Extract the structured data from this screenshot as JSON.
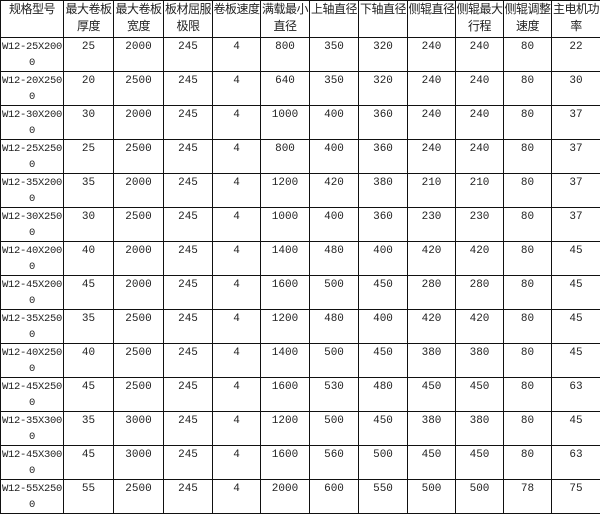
{
  "table": {
    "headers": [
      "规格型号",
      "最大卷板厚度",
      "最大卷板宽度",
      "板材屈服极限",
      "卷板速度",
      "满载最小直径",
      "上轴直径",
      "下轴直径",
      "侧辊直径",
      "侧辊最大行程",
      "侧辊调整速度",
      "主电机功率"
    ],
    "rows": [
      [
        "W12-25X2000",
        "25",
        "2000",
        "245",
        "4",
        "800",
        "350",
        "320",
        "240",
        "240",
        "80",
        "22"
      ],
      [
        "W12-20X2500",
        "20",
        "2500",
        "245",
        "4",
        "640",
        "350",
        "320",
        "240",
        "240",
        "80",
        "30"
      ],
      [
        "W12-30X2000",
        "30",
        "2000",
        "245",
        "4",
        "1000",
        "400",
        "360",
        "240",
        "240",
        "80",
        "37"
      ],
      [
        "W12-25X2500",
        "25",
        "2500",
        "245",
        "4",
        "800",
        "400",
        "360",
        "240",
        "240",
        "80",
        "37"
      ],
      [
        "W12-35X2000",
        "35",
        "2000",
        "245",
        "4",
        "1200",
        "420",
        "380",
        "210",
        "210",
        "80",
        "37"
      ],
      [
        "W12-30X2500",
        "30",
        "2500",
        "245",
        "4",
        "1000",
        "400",
        "360",
        "230",
        "230",
        "80",
        "37"
      ],
      [
        "W12-40X2000",
        "40",
        "2000",
        "245",
        "4",
        "1400",
        "480",
        "400",
        "420",
        "420",
        "80",
        "45"
      ],
      [
        "W12-45X2000",
        "45",
        "2000",
        "245",
        "4",
        "1600",
        "500",
        "450",
        "280",
        "280",
        "80",
        "45"
      ],
      [
        "W12-35X2500",
        "35",
        "2500",
        "245",
        "4",
        "1200",
        "480",
        "400",
        "420",
        "420",
        "80",
        "45"
      ],
      [
        "W12-40X2500",
        "40",
        "2500",
        "245",
        "4",
        "1400",
        "500",
        "450",
        "380",
        "380",
        "80",
        "45"
      ],
      [
        "W12-45X2500",
        "45",
        "2500",
        "245",
        "4",
        "1600",
        "530",
        "480",
        "450",
        "450",
        "80",
        "63"
      ],
      [
        "W12-35X3000",
        "35",
        "3000",
        "245",
        "4",
        "1200",
        "500",
        "450",
        "380",
        "380",
        "80",
        "45"
      ],
      [
        "W12-45X3000",
        "45",
        "3000",
        "245",
        "4",
        "1600",
        "560",
        "500",
        "450",
        "450",
        "80",
        "63"
      ],
      [
        "W12-55X2500",
        "55",
        "2500",
        "245",
        "4",
        "2000",
        "600",
        "550",
        "500",
        "500",
        "78",
        "75"
      ]
    ]
  }
}
